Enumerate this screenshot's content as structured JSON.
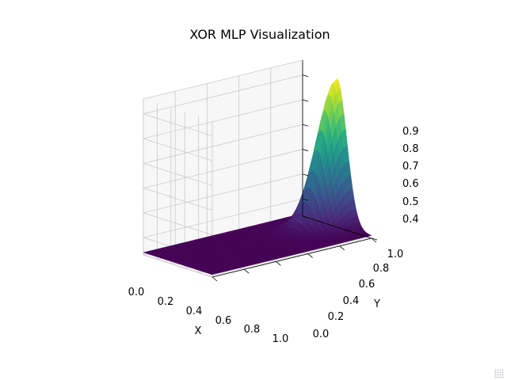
{
  "chart_data": {
    "type": "surface",
    "title": "XOR MLP Visualization",
    "xlabel": "X",
    "ylabel": "Y",
    "zlabel": "",
    "x_ticks": [
      "0.0",
      "0.2",
      "0.4",
      "0.6",
      "0.8",
      "1.0"
    ],
    "y_ticks": [
      "0.0",
      "0.2",
      "0.4",
      "0.6",
      "0.8",
      "1.0"
    ],
    "z_ticks": [
      "0.4",
      "0.5",
      "0.6",
      "0.7",
      "0.8",
      "0.9"
    ],
    "xlim": [
      0,
      1
    ],
    "ylim": [
      0,
      1
    ],
    "zlim": [
      0.33,
      0.96
    ],
    "colormap": "viridis",
    "surface": {
      "baseline": 0.34,
      "peak_value": 0.93,
      "peak_x": 1.0,
      "peak_y": 0.5,
      "spread_x": 0.16,
      "spread_y": 0.2
    },
    "grid": true
  }
}
